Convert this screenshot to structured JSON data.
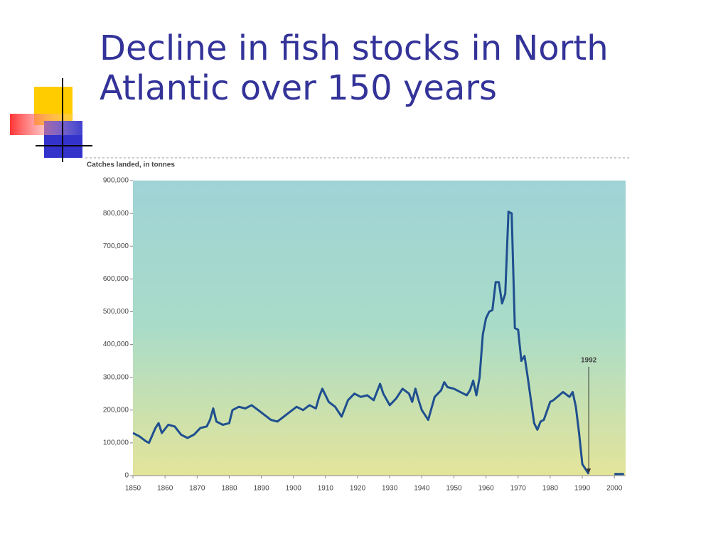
{
  "chart_data": {
    "type": "line",
    "title": "Decline in fish stocks in North Atlantic over 150 years",
    "y_label": "Catches landed, in tonnes",
    "x": [
      1850,
      1852,
      1854,
      1855,
      1857,
      1858,
      1859,
      1861,
      1863,
      1865,
      1867,
      1869,
      1871,
      1873,
      1874,
      1875,
      1876,
      1878,
      1880,
      1881,
      1883,
      1885,
      1887,
      1889,
      1891,
      1893,
      1895,
      1897,
      1899,
      1901,
      1903,
      1905,
      1907,
      1908,
      1909,
      1911,
      1913,
      1915,
      1917,
      1919,
      1921,
      1923,
      1925,
      1927,
      1928,
      1930,
      1932,
      1934,
      1936,
      1937,
      1938,
      1939,
      1940,
      1942,
      1944,
      1946,
      1947,
      1948,
      1950,
      1952,
      1954,
      1955,
      1956,
      1957,
      1958,
      1959,
      1960,
      1961,
      1962,
      1963,
      1964,
      1965,
      1966,
      1967,
      1968,
      1969,
      1970,
      1971,
      1972,
      1973,
      1974,
      1975,
      1976,
      1977,
      1978,
      1980,
      1981,
      1984,
      1986,
      1987,
      1988,
      1989,
      1990,
      1992,
      1996,
      2000,
      2003
    ],
    "series": [
      {
        "color": "#1f4f8f",
        "values": [
          130000,
          120000,
          105000,
          100000,
          145000,
          160000,
          130000,
          155000,
          150000,
          125000,
          115000,
          125000,
          145000,
          150000,
          170000,
          205000,
          165000,
          155000,
          160000,
          200000,
          210000,
          205000,
          215000,
          200000,
          185000,
          170000,
          165000,
          180000,
          195000,
          210000,
          200000,
          215000,
          205000,
          240000,
          265000,
          225000,
          210000,
          180000,
          230000,
          250000,
          240000,
          245000,
          230000,
          280000,
          250000,
          215000,
          235000,
          265000,
          250000,
          225000,
          265000,
          230000,
          200000,
          170000,
          240000,
          260000,
          285000,
          270000,
          265000,
          255000,
          245000,
          260000,
          290000,
          245000,
          300000,
          430000,
          480000,
          500000,
          505000,
          590000,
          590000,
          525000,
          555000,
          805000,
          800000,
          450000,
          445000,
          350000,
          365000,
          300000,
          230000,
          160000,
          140000,
          165000,
          170000,
          225000,
          230000,
          255000,
          240000,
          255000,
          210000,
          130000,
          35000,
          5000,
          null,
          5000,
          5000
        ]
      }
    ],
    "annotations": [
      {
        "text": "1992",
        "x": 1992
      }
    ],
    "xlim": [
      1850,
      2003.5
    ],
    "ylim": [
      0,
      900000
    ],
    "xticks": [
      1850,
      1860,
      1870,
      1880,
      1890,
      1900,
      1910,
      1920,
      1930,
      1940,
      1950,
      1960,
      1970,
      1980,
      1990,
      2000
    ],
    "yticks": [
      0,
      {
        "value": 100000,
        "label": "100,000"
      },
      {
        "value": 200000,
        "label": "200,000"
      },
      {
        "value": 300000,
        "label": "300,000"
      },
      {
        "value": 400000,
        "label": "400,000"
      },
      {
        "value": 500000,
        "label": "500,000"
      },
      {
        "value": 600000,
        "label": "600,000"
      },
      {
        "value": 700000,
        "label": "700,000"
      },
      {
        "value": 800000,
        "label": "800,000"
      },
      {
        "value": 900000,
        "label": "900,000"
      }
    ]
  }
}
